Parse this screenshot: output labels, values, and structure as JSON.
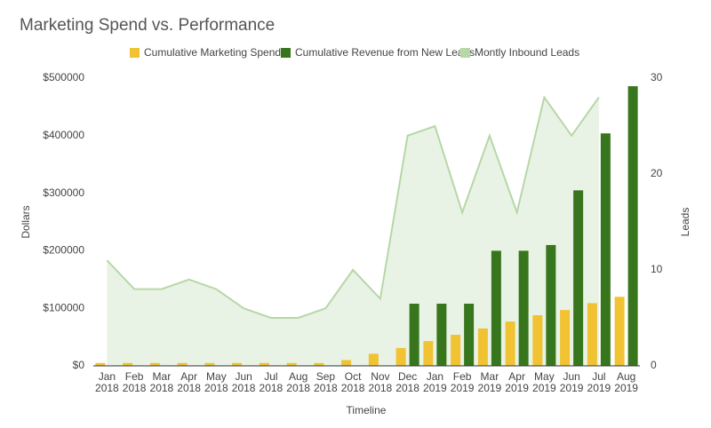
{
  "chart_data": {
    "type": "bar",
    "title": "Marketing Spend vs. Performance",
    "x_label": "Timeline",
    "y_label": "Dollars",
    "y2_label": "Leads",
    "categories": [
      "Jan 2018",
      "Feb 2018",
      "Mar 2018",
      "Apr 2018",
      "May 2018",
      "Jun 2018",
      "Jul 2018",
      "Aug 2018",
      "Sep 2018",
      "Oct 2018",
      "Nov 2018",
      "Dec 2018",
      "Jan 2019",
      "Feb 2019",
      "Mar 2019",
      "Apr 2019",
      "May 2019",
      "Jun 2019",
      "Jul 2019",
      "Aug 2019"
    ],
    "series": [
      {
        "name": "Cumulative Marketing Spend",
        "color": "#f1c232",
        "values": [
          5000,
          5000,
          5000,
          5000,
          5000,
          5000,
          5000,
          5000,
          5000,
          10000,
          21000,
          31000,
          43000,
          54000,
          65000,
          77000,
          88000,
          97000,
          109000,
          120000
        ]
      },
      {
        "name": "Cumulative Revenue from New Leads",
        "color": "#38761d",
        "values": [
          0,
          0,
          0,
          0,
          0,
          0,
          0,
          0,
          0,
          0,
          0,
          108000,
          108000,
          108000,
          200000,
          200000,
          210000,
          305000,
          404000,
          486000
        ]
      },
      {
        "name": "Montly Inbound Leads",
        "color": "#b6d7a8",
        "type": "area",
        "axis": "y2",
        "values": [
          11,
          8,
          8,
          9,
          8,
          6,
          5,
          5,
          6,
          10,
          7,
          24,
          25,
          16,
          24,
          16,
          28,
          24,
          28,
          null
        ]
      }
    ],
    "ylim": [
      0,
      500000
    ],
    "yticks": [
      {
        "value": 0,
        "label": "$0"
      },
      {
        "value": 100000,
        "label": "$100000"
      },
      {
        "value": 200000,
        "label": "$200000"
      },
      {
        "value": 300000,
        "label": "$300000"
      },
      {
        "value": 400000,
        "label": "$400000"
      },
      {
        "value": 500000,
        "label": "$500000"
      }
    ],
    "y2lim": [
      0,
      30
    ],
    "y2ticks": [
      0,
      10,
      20,
      30
    ],
    "grid": false
  }
}
